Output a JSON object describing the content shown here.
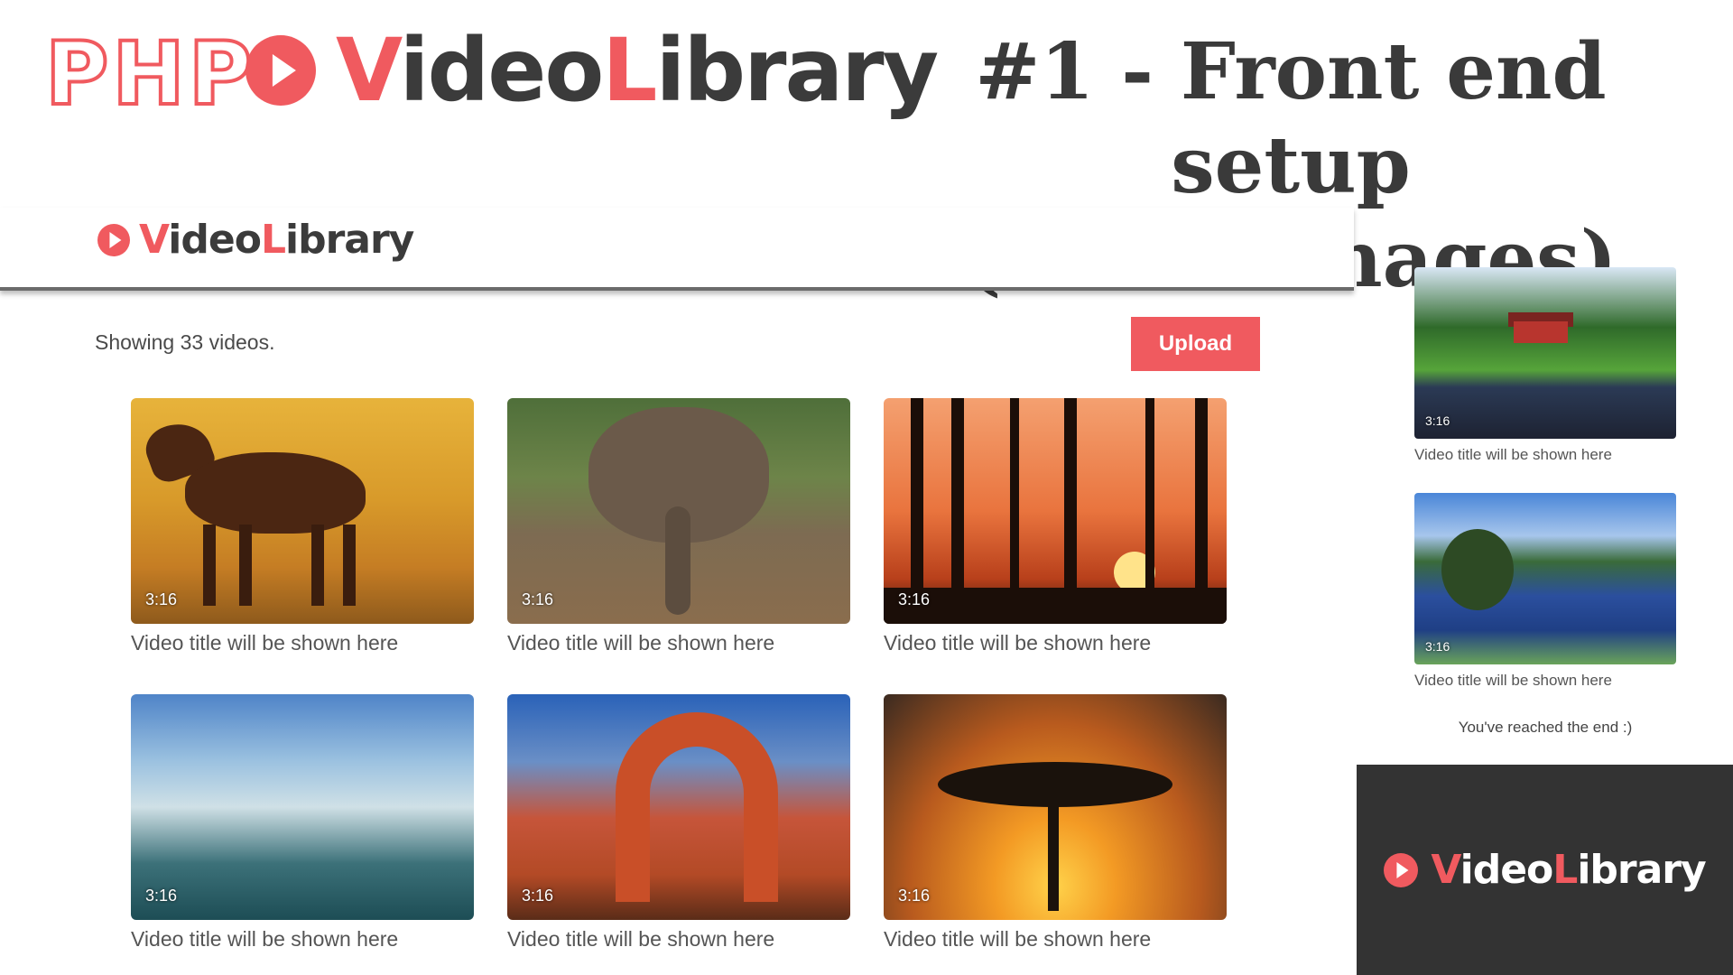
{
  "banner": {
    "php": "PHP",
    "logo_v": "V",
    "logo_ideo": "ideo",
    "logo_l": "L",
    "logo_ibrary": "ibrary",
    "title_line1": "#1 - Front end setup",
    "title_line2": "(static images)"
  },
  "header": {
    "logo_v": "V",
    "logo_ideo": "ideo",
    "logo_l": "L",
    "logo_ibrary": "ibrary"
  },
  "toolbar": {
    "count_text": "Showing 33 videos.",
    "upload_label": "Upload"
  },
  "videos": [
    {
      "duration": "3:16",
      "title": "Video title will be shown here",
      "icon": "horse-thumbnail"
    },
    {
      "duration": "3:16",
      "title": "Video title will be shown here",
      "icon": "elephant-thumbnail"
    },
    {
      "duration": "3:16",
      "title": "Video title will be shown here",
      "icon": "sunset-forest-thumbnail"
    },
    {
      "duration": "3:16",
      "title": "Video title will be shown here",
      "icon": "waterfall-thumbnail"
    },
    {
      "duration": "3:16",
      "title": "Video title will be shown here",
      "icon": "rock-arch-thumbnail"
    },
    {
      "duration": "3:16",
      "title": "Video title will be shown here",
      "icon": "acacia-sunset-thumbnail"
    }
  ],
  "sidebar_videos": [
    {
      "duration": "3:16",
      "title": "Video title will be shown here",
      "icon": "lake-house-thumbnail"
    },
    {
      "duration": "3:16",
      "title": "Video title will be shown here",
      "icon": "lake-tree-thumbnail"
    }
  ],
  "end_text": "You've reached the end :)",
  "dark_logo": {
    "logo_v": "V",
    "logo_ideo": "ideo",
    "logo_l": "L",
    "logo_ibrary": "ibrary"
  },
  "colors": {
    "accent": "#f05a5f",
    "text_dark": "#3b3b3b",
    "dark_panel": "#333333"
  }
}
